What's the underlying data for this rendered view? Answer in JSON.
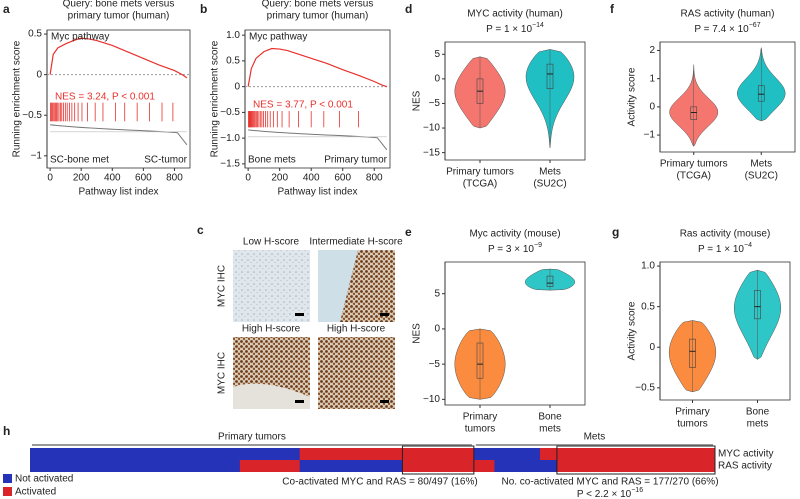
{
  "chart_data": [
    {
      "type": "gsea",
      "panel": "a",
      "title": [
        "Query: bone mets versus",
        "primary tumor (human)"
      ],
      "pathway": "Myc pathway",
      "annotation": "NES = 3.24, P < 0.001",
      "xlabel": "Pathway list index",
      "ylabel": "Running enrichment score",
      "left_label": "SC-bone met",
      "right_label": "SC-tumor",
      "color": "#e8312c",
      "x": [
        0,
        20,
        50,
        100,
        150,
        200,
        250,
        300,
        400,
        500,
        600,
        700,
        800,
        850,
        880
      ],
      "y": [
        0,
        0.25,
        0.33,
        0.38,
        0.42,
        0.45,
        0.44,
        0.42,
        0.36,
        0.28,
        0.2,
        0.12,
        0.05,
        0,
        -0.04
      ],
      "hits": [
        3,
        8,
        14,
        20,
        27,
        34,
        41,
        49,
        57,
        66,
        75,
        86,
        98,
        110,
        124,
        140,
        158,
        180,
        205,
        240,
        290,
        340,
        420,
        480,
        560,
        640,
        720,
        790
      ],
      "xlim": [
        -20,
        900
      ],
      "ylim": [
        -1.15,
        0.55
      ],
      "xticks": [
        0,
        200,
        400,
        600,
        800
      ],
      "yticks": [
        0.5,
        0,
        {
          "value": -0.5,
          "label": "−0.5"
        },
        {
          "value": -1,
          "label": "−1"
        }
      ]
    },
    {
      "type": "gsea",
      "panel": "b",
      "title": [
        "Query: bone mets versus",
        "primary tumor (human)"
      ],
      "pathway": "Myc pathway",
      "annotation": "NES = 3.77, P < 0.001",
      "xlabel": "Pathway list index",
      "ylabel": "Running enrichment score",
      "left_label": "Bone mets",
      "right_label": "Primary tumor",
      "color": "#e8312c",
      "x": [
        0,
        20,
        50,
        100,
        150,
        200,
        250,
        300,
        400,
        500,
        600,
        700,
        800,
        850,
        880
      ],
      "y": [
        0,
        0.35,
        0.55,
        0.68,
        0.74,
        0.73,
        0.7,
        0.65,
        0.55,
        0.45,
        0.33,
        0.22,
        0.1,
        0.03,
        0
      ],
      "hits": [
        2,
        6,
        10,
        14,
        18,
        23,
        28,
        33,
        39,
        45,
        52,
        60,
        68,
        77,
        87,
        98,
        110,
        124,
        140,
        160,
        185,
        215,
        260,
        320,
        400,
        480,
        580,
        700
      ],
      "xlim": [
        -20,
        900
      ],
      "ylim": [
        -1.58,
        1.1
      ],
      "xticks": [
        0,
        200,
        400,
        600,
        800
      ],
      "yticks": [
        {
          "value": 1,
          "label": "1.0"
        },
        0.5,
        0,
        {
          "value": -0.5,
          "label": "−0.5"
        },
        {
          "value": -1,
          "label": "−1.0"
        },
        {
          "value": -1.5,
          "label": "−1.5"
        }
      ]
    },
    {
      "type": "violin",
      "panel": "d",
      "title": "MYC activity (human)",
      "p_text": "P = 1 × 10",
      "p_exp": "−14",
      "ylabel": "NES",
      "categories": [
        [
          "Primary tumors",
          "(TCGA)"
        ],
        [
          "Mets",
          "(SU2C)"
        ]
      ],
      "colors": [
        "#f4766e",
        "#1fbfc4"
      ],
      "values": [
        [
          -10,
          -5,
          -2.5,
          0,
          4.5
        ],
        [
          -14,
          -2,
          1,
          3,
          6
        ]
      ],
      "ylim": [
        -16.5,
        7.5
      ],
      "yticks": [
        5,
        0,
        {
          "value": -5,
          "label": "−5"
        },
        {
          "value": -10,
          "label": "−10"
        },
        {
          "value": -15,
          "label": "−15"
        }
      ]
    },
    {
      "type": "violin",
      "panel": "f",
      "title": "RAS activity (human)",
      "p_text": "P = 7.4 × 10",
      "p_exp": "−67",
      "ylabel": "Activity score",
      "categories": [
        [
          "Primary tumors",
          "(TCGA)"
        ],
        [
          "Mets",
          "(SU2C)"
        ]
      ],
      "colors": [
        "#f4766e",
        "#1fbfc4"
      ],
      "values": [
        [
          -1.4,
          -0.45,
          -0.2,
          0,
          1.5
        ],
        [
          -0.5,
          0.2,
          0.45,
          0.75,
          2.1
        ]
      ],
      "ylim": [
        -1.6,
        2.3
      ],
      "yticks": [
        2,
        1,
        0,
        {
          "value": -1,
          "label": "−1"
        }
      ]
    },
    {
      "type": "violin",
      "panel": "e",
      "title": "Myc activity (mouse)",
      "p_text": "P = 3 × 10",
      "p_exp": "−9",
      "ylabel": "NES",
      "categories": [
        [
          "Primary",
          "tumors"
        ],
        [
          "Bone",
          "mets"
        ]
      ],
      "colors": [
        "#fb8b3f",
        "#2ec6c6"
      ],
      "values": [
        [
          -10,
          -7,
          -5,
          -2,
          0
        ],
        [
          5.5,
          6,
          6.5,
          7.5,
          8.5
        ]
      ],
      "ylim": [
        -10.8,
        9.5
      ],
      "yticks": [
        5,
        0,
        {
          "value": -5,
          "label": "−5"
        },
        {
          "value": -10,
          "label": "−10"
        }
      ]
    },
    {
      "type": "violin",
      "panel": "g",
      "title": "Ras activity (mouse)",
      "p_text": "P = 1 × 10",
      "p_exp": "−4",
      "ylabel": "Activity score",
      "categories": [
        [
          "Primary",
          "tumors"
        ],
        [
          "Bone",
          "mets"
        ]
      ],
      "colors": [
        "#fb8b3f",
        "#2ec6c6"
      ],
      "values": [
        [
          -0.55,
          -0.25,
          -0.05,
          0.1,
          0.33
        ],
        [
          -0.15,
          0.35,
          0.5,
          0.7,
          0.95
        ]
      ],
      "ylim": [
        -0.65,
        1.05
      ],
      "yticks": [
        {
          "value": 1,
          "label": "1.0"
        },
        0.5,
        0,
        {
          "value": -0.5,
          "label": "−0.5"
        }
      ]
    }
  ],
  "ihc": {
    "panel": "c",
    "images": [
      "Low H-score",
      "Intermediate H-score",
      "High H-score",
      "High H-score"
    ],
    "row_labels": [
      "MYC IHC",
      "MYC IHC"
    ]
  },
  "heatmap": {
    "panel": "h",
    "n_samples": 767,
    "groups": [
      {
        "label": "Primary tumors",
        "start": 0,
        "end": 497
      },
      {
        "label": "Mets",
        "start": 497,
        "end": 767
      }
    ],
    "rows": [
      {
        "label": "MYC activity",
        "activated": [
          [
            302,
            497
          ],
          [
            571,
            767
          ]
        ]
      },
      {
        "label": "RAS activity",
        "activated": [
          [
            235,
            302
          ],
          [
            417,
            497
          ],
          [
            497,
            520
          ],
          [
            590,
            767
          ]
        ]
      }
    ],
    "boxes": [
      [
        417,
        497
      ],
      [
        590,
        767
      ]
    ],
    "legend": [
      {
        "label": "Not activated",
        "color": "#2433b8"
      },
      {
        "label": "Activated",
        "color": "#d9242a"
      }
    ],
    "notes": [
      "Co-activated MYC and RAS = 80/497 (16%)",
      "No. co-activated MYC and RAS = 177/270 (66%)"
    ],
    "p_text": "P < 2.2 × 10",
    "p_exp": "−16"
  }
}
